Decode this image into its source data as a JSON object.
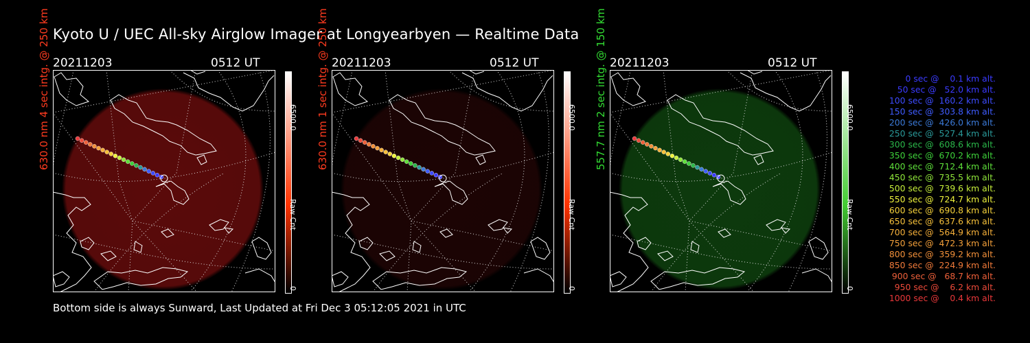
{
  "title": "Kyoto U / UEC All-sky Airglow Imager at Longyearbyen — Realtime Data",
  "footer": "Bottom side is always Sunward, Last Updated at Fri Dec  3 05:12:05 2021 in UTC",
  "panels": [
    {
      "date": "20211203",
      "time": "0512 UT",
      "label": "630.0 nm 4 sec intg. @ 250 km",
      "label_color": "#ff3b1f",
      "colorbar_max": "6500.0",
      "colorbar_min": "0",
      "colorbar_unit": "Raw Cnt",
      "bar_top_color": "#ffffff",
      "bar_bottom_color": "#ff3300",
      "glow_color": "#5a0a0a"
    },
    {
      "date": "20211203",
      "time": "0512 UT",
      "label": "630.0 nm 1 sec intg. @ 250 km",
      "label_color": "#ff3b1f",
      "colorbar_max": "6500.0",
      "colorbar_min": "0",
      "colorbar_unit": "Raw Cnt",
      "bar_top_color": "#ffffff",
      "bar_bottom_color": "#ff3300",
      "glow_color": "#1c0404"
    },
    {
      "date": "20211203",
      "time": "0512 UT",
      "label": "557.7 nm 2 sec intg. @ 150 km",
      "label_color": "#33dd33",
      "colorbar_max": "6500.0",
      "colorbar_min": "0",
      "colorbar_unit": "Raw Cnt",
      "bar_top_color": "#ffffff",
      "bar_bottom_color": "#44cc33",
      "glow_color": "#0d3a0d"
    }
  ],
  "legend": [
    {
      "text": "   0 sec @    0.1 km alt.",
      "color": "#3b3bff"
    },
    {
      "text": "  50 sec @   52.0 km alt.",
      "color": "#3b3bff"
    },
    {
      "text": " 100 sec @  160.2 km alt.",
      "color": "#3d4cff"
    },
    {
      "text": " 150 sec @  303.8 km alt.",
      "color": "#3f5cff"
    },
    {
      "text": " 200 sec @  426.0 km alt.",
      "color": "#3b7ad8"
    },
    {
      "text": " 250 sec @  527.4 km alt.",
      "color": "#2a9a9a"
    },
    {
      "text": " 300 sec @  608.6 km alt.",
      "color": "#2bb84a"
    },
    {
      "text": " 350 sec @  670.2 km alt.",
      "color": "#3ed23a"
    },
    {
      "text": " 400 sec @  712.4 km alt.",
      "color": "#5ee03a"
    },
    {
      "text": " 450 sec @  735.5 km alt.",
      "color": "#8fe63a"
    },
    {
      "text": " 500 sec @  739.6 km alt.",
      "color": "#c6ee3a"
    },
    {
      "text": " 550 sec @  724.7 km alt.",
      "color": "#eef23c"
    },
    {
      "text": " 600 sec @  690.8 km alt.",
      "color": "#f6d23a"
    },
    {
      "text": " 650 sec @  637.6 km alt.",
      "color": "#f6c03a"
    },
    {
      "text": " 700 sec @  564.9 km alt.",
      "color": "#f6b03a"
    },
    {
      "text": " 750 sec @  472.3 km alt.",
      "color": "#f4a03a"
    },
    {
      "text": " 800 sec @  359.2 km alt.",
      "color": "#f2903a"
    },
    {
      "text": " 850 sec @  224.9 km alt.",
      "color": "#f07a3a"
    },
    {
      "text": " 900 sec @   68.7 km alt.",
      "color": "#ee603a"
    },
    {
      "text": " 950 sec @    6.2 km alt.",
      "color": "#ec4a3a"
    },
    {
      "text": "1000 sec @    0.4 km alt.",
      "color": "#ea383a"
    }
  ]
}
